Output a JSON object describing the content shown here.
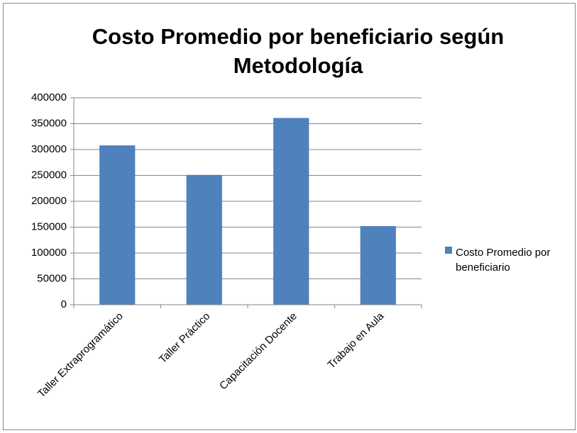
{
  "chart_data": {
    "type": "bar",
    "title": "Costo Promedio por beneficiario según Metodología",
    "categories": [
      "Taller Extraprogramático",
      "Taller Práctico",
      "Capacitación Docente",
      "Trabajo en Aula"
    ],
    "series": [
      {
        "name": "Costo Promedio por beneficiario",
        "color": "#4f81bd",
        "values": [
          308000,
          251000,
          361000,
          152000
        ]
      }
    ],
    "ylim": [
      0,
      400000
    ],
    "yticks": [
      0,
      50000,
      100000,
      150000,
      200000,
      250000,
      300000,
      350000,
      400000
    ],
    "grid": true,
    "legend": "right"
  }
}
